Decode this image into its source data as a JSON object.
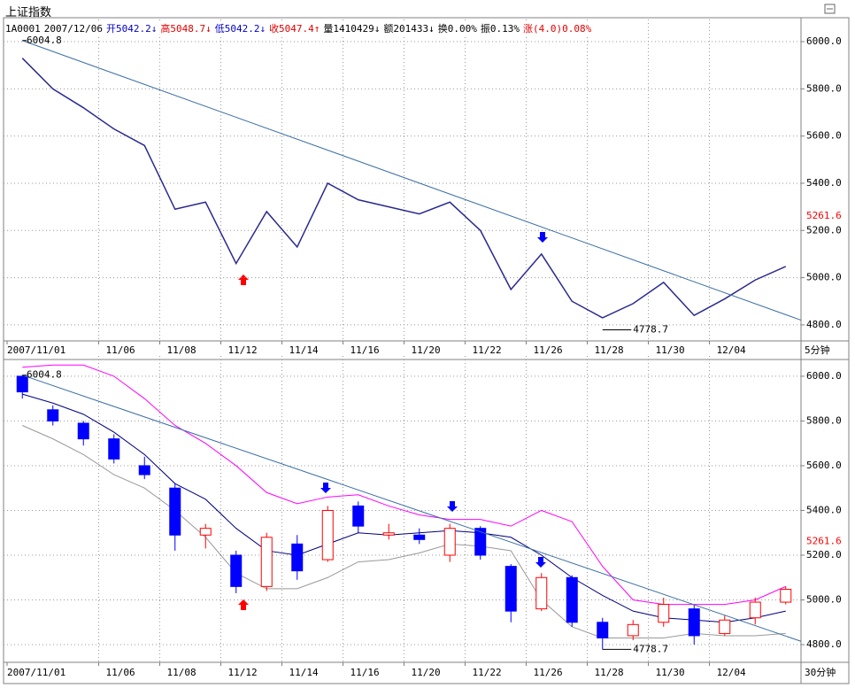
{
  "header": {
    "title": "上证指数",
    "items": [
      {
        "text": "1A0001",
        "color": "#000000"
      },
      {
        "text": "2007/12/06",
        "color": "#000000"
      },
      {
        "text": "开5042.2↓",
        "color": "#0000c8"
      },
      {
        "text": "高5048.7↓",
        "color": "#e00000"
      },
      {
        "text": "低5042.2↓",
        "color": "#0000c8"
      },
      {
        "text": "收5047.4↑",
        "color": "#e00000"
      },
      {
        "text": "量1410429↓",
        "color": "#000000"
      },
      {
        "text": "额201433↓",
        "color": "#000000"
      },
      {
        "text": "换0.00%",
        "color": "#000000"
      },
      {
        "text": "振0.13%",
        "color": "#000000"
      },
      {
        "text": "涨(4.0)0.08%",
        "color": "#e00000"
      }
    ]
  },
  "chart_data": [
    {
      "type": "line",
      "period": "5分钟",
      "categories": [
        "2007/11/01",
        null,
        null,
        "11/06",
        null,
        "11/08",
        null,
        "11/12",
        null,
        "11/14",
        null,
        "11/16",
        null,
        "11/20",
        null,
        "11/22",
        null,
        "11/26",
        null,
        "11/28",
        null,
        "11/30",
        null,
        "12/04",
        null,
        null
      ],
      "values": [
        5930,
        5800,
        5720,
        5630,
        5560,
        5290,
        5320,
        5060,
        5280,
        5130,
        5400,
        5330,
        5300,
        5270,
        5320,
        5200,
        4950,
        5100,
        4900,
        4830,
        4890,
        4980,
        4840,
        4910,
        4990,
        5047.4
      ],
      "color": "#2a2a90",
      "ylim": [
        4732,
        6064
      ],
      "yticks": [
        {
          "value": 4800,
          "label": "4800.0"
        },
        {
          "value": 5000,
          "label": "5000.0"
        },
        {
          "value": 5200,
          "label": "5200.0"
        },
        {
          "value": 5400,
          "label": "5400.0"
        },
        {
          "value": 5600,
          "label": "5600.0"
        },
        {
          "value": 5800,
          "label": "5800.0"
        },
        {
          "value": 6000,
          "label": "6000.0"
        }
      ],
      "grid": true,
      "trendline": {
        "from": 6004.8,
        "to": 4820,
        "color": "#3a6ea5"
      },
      "high_label": 6004.8,
      "low_label": 4778.7,
      "ref_value": 5261.6
    },
    {
      "type": "candlestick",
      "period": "30分钟",
      "categories": [
        "2007/11/01",
        null,
        null,
        "11/06",
        null,
        "11/08",
        null,
        "11/12",
        null,
        "11/14",
        null,
        "11/16",
        null,
        "11/20",
        null,
        "11/22",
        null,
        "11/26",
        null,
        "11/28",
        null,
        "11/30",
        null,
        "12/04",
        null,
        null
      ],
      "open": [
        6000,
        5850,
        5790,
        5720,
        5600,
        5500,
        5290,
        5200,
        5060,
        5250,
        5180,
        5420,
        5290,
        5290,
        5200,
        5320,
        5150,
        4960,
        5100,
        4900,
        4840,
        4900,
        4960,
        4850,
        4920,
        4990
      ],
      "high": [
        6004.8,
        5870,
        5800,
        5740,
        5640,
        5520,
        5340,
        5220,
        5300,
        5290,
        5420,
        5440,
        5340,
        5320,
        5340,
        5330,
        5160,
        5120,
        5110,
        4920,
        4910,
        5010,
        4980,
        4930,
        5010,
        5060
      ],
      "low": [
        5900,
        5780,
        5690,
        5610,
        5540,
        5220,
        5230,
        5030,
        5040,
        5090,
        5170,
        5300,
        5270,
        5250,
        5170,
        5180,
        4900,
        4950,
        4880,
        4778.7,
        4820,
        4880,
        4800,
        4840,
        4890,
        4980
      ],
      "close": [
        5930,
        5800,
        5720,
        5630,
        5560,
        5290,
        5320,
        5060,
        5280,
        5130,
        5400,
        5330,
        5300,
        5270,
        5320,
        5200,
        4950,
        5100,
        4900,
        4830,
        4890,
        4980,
        4840,
        4910,
        4990,
        5047.4
      ],
      "up_color": "#ff0000",
      "down_color": "#0000ff",
      "upper": [
        6040,
        6050,
        6050,
        6000,
        5900,
        5780,
        5700,
        5600,
        5480,
        5430,
        5460,
        5470,
        5420,
        5380,
        5360,
        5360,
        5330,
        5400,
        5350,
        5150,
        5000,
        4980,
        4980,
        4980,
        5000,
        5060
      ],
      "middle": [
        5920,
        5880,
        5830,
        5750,
        5650,
        5520,
        5450,
        5320,
        5220,
        5200,
        5250,
        5300,
        5290,
        5300,
        5310,
        5300,
        5280,
        5200,
        5100,
        5020,
        4950,
        4920,
        4910,
        4900,
        4920,
        4950
      ],
      "lower": [
        5780,
        5720,
        5650,
        5560,
        5500,
        5400,
        5280,
        5120,
        5050,
        5050,
        5100,
        5170,
        5180,
        5210,
        5250,
        5240,
        5220,
        5000,
        4880,
        4830,
        4830,
        4830,
        4850,
        4840,
        4840,
        4850
      ],
      "upper_color": "#ff00ff",
      "middle_color": "#000080",
      "lower_color": "#999999",
      "ylim": [
        4721,
        6059
      ],
      "yticks": [
        {
          "value": 4800,
          "label": "4800.0"
        },
        {
          "value": 5000,
          "label": "5000.0"
        },
        {
          "value": 5200,
          "label": "5200.0"
        },
        {
          "value": 5400,
          "label": "5400.0"
        },
        {
          "value": 5600,
          "label": "5600.0"
        },
        {
          "value": 5800,
          "label": "5800.0"
        },
        {
          "value": 6000,
          "label": "6000.0"
        }
      ],
      "grid": true,
      "trendline": {
        "from": 6004.8,
        "to": 4815,
        "color": "#3a6ea5"
      },
      "high_label": 6004.8,
      "low_label": 4778.7,
      "ref_value": 5261.6
    }
  ]
}
